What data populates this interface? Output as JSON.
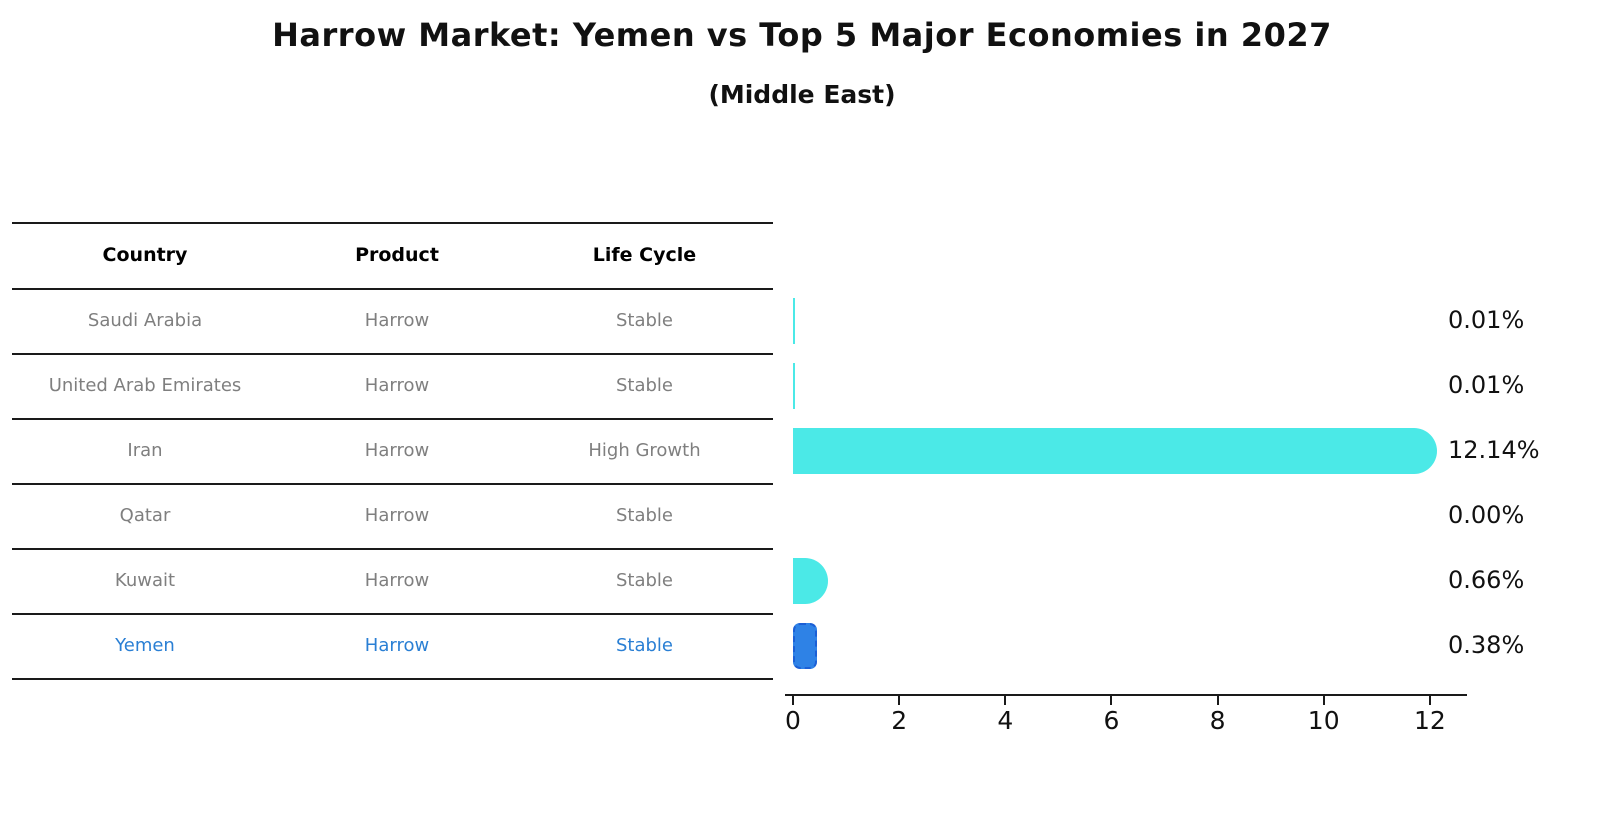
{
  "title": "Harrow Market: Yemen vs Top 5 Major Economies in 2027",
  "subtitle": "(Middle East)",
  "colors": {
    "bar_cyan": "#4BE9E7",
    "highlight_fill": "#2E82E6",
    "highlight_border": "#1B5FD6",
    "highlight_text": "#2A7FD4",
    "table_text_gray": "#7f7f7f",
    "axis_black": "#1a1a1a"
  },
  "table": {
    "headers": [
      "Country",
      "Product",
      "Life Cycle"
    ],
    "rows": [
      {
        "country": "Saudi Arabia",
        "product": "Harrow",
        "life_cycle": "Stable",
        "highlight": false
      },
      {
        "country": "United Arab Emirates",
        "product": "Harrow",
        "life_cycle": "Stable",
        "highlight": false
      },
      {
        "country": "Iran",
        "product": "Harrow",
        "life_cycle": "High Growth",
        "highlight": false
      },
      {
        "country": "Qatar",
        "product": "Harrow",
        "life_cycle": "Stable",
        "highlight": false
      },
      {
        "country": "Kuwait",
        "product": "Harrow",
        "life_cycle": "Stable",
        "highlight": false
      },
      {
        "country": "Yemen",
        "product": "Harrow",
        "life_cycle": "Stable",
        "highlight": true
      }
    ]
  },
  "chart_data": {
    "type": "bar",
    "orientation": "horizontal",
    "title": "Harrow Market: Yemen vs Top 5 Major Economies in 2027",
    "subtitle": "(Middle East)",
    "categories": [
      "Saudi Arabia",
      "United Arab Emirates",
      "Iran",
      "Qatar",
      "Kuwait",
      "Yemen"
    ],
    "values": [
      0.01,
      0.01,
      12.14,
      0.0,
      0.66,
      0.38
    ],
    "value_labels": [
      "0.01%",
      "0.01%",
      "12.14%",
      "0.00%",
      "0.66%",
      "0.38%"
    ],
    "x_ticks": [
      0,
      2,
      4,
      6,
      8,
      10,
      12
    ],
    "xlim": [
      0,
      12.7
    ],
    "xlabel": "",
    "ylabel": "",
    "grid": false,
    "legend": false,
    "highlight_index": 5
  }
}
